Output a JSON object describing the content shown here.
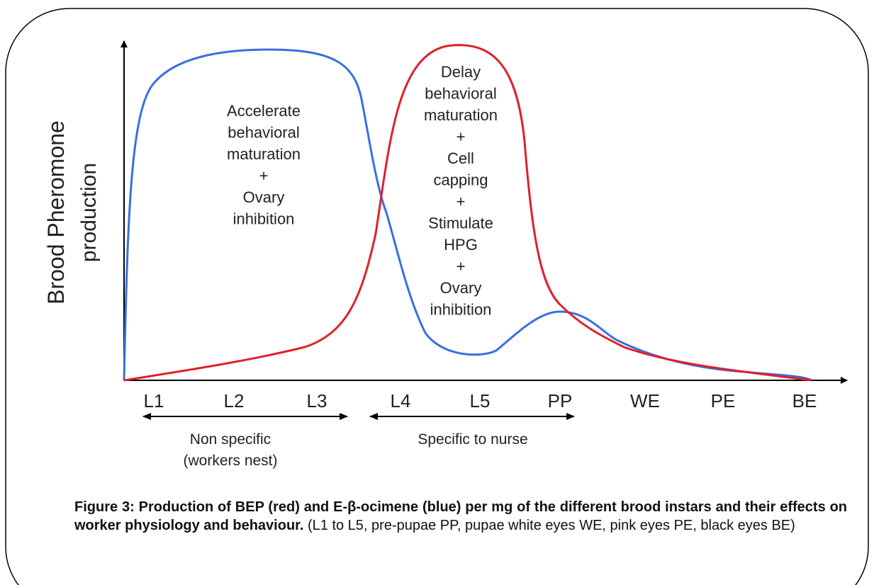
{
  "axis": {
    "y_label": [
      "Brood Pheromone",
      "production"
    ],
    "x_labels": [
      "L1",
      "L2",
      "L3",
      "L4",
      "L5",
      "PP",
      "WE",
      "PE",
      "BE"
    ]
  },
  "annotations": {
    "blue_region": [
      "Accelerate",
      "behavioral",
      "maturation",
      "+",
      "Ovary",
      "inhibition"
    ],
    "red_region": [
      "Delay",
      "behavioral",
      "maturation",
      "+",
      "Cell",
      "capping",
      "+",
      "Stimulate",
      "HPG",
      "+",
      "Ovary",
      "inhibition"
    ]
  },
  "ranges": [
    {
      "label": [
        "Non specific",
        "(workers nest)"
      ]
    },
    {
      "label": [
        "Specific to nurse"
      ]
    }
  ],
  "caption": {
    "bold": "Figure 3: Production of BEP (red) and E-β-ocimene (blue) per mg of the different brood instars and their effects on worker physiology and behaviour.",
    "text": "(L1 to L5, pre-pupae PP, pupae white eyes WE, pink eyes PE, black eyes BE)"
  }
}
